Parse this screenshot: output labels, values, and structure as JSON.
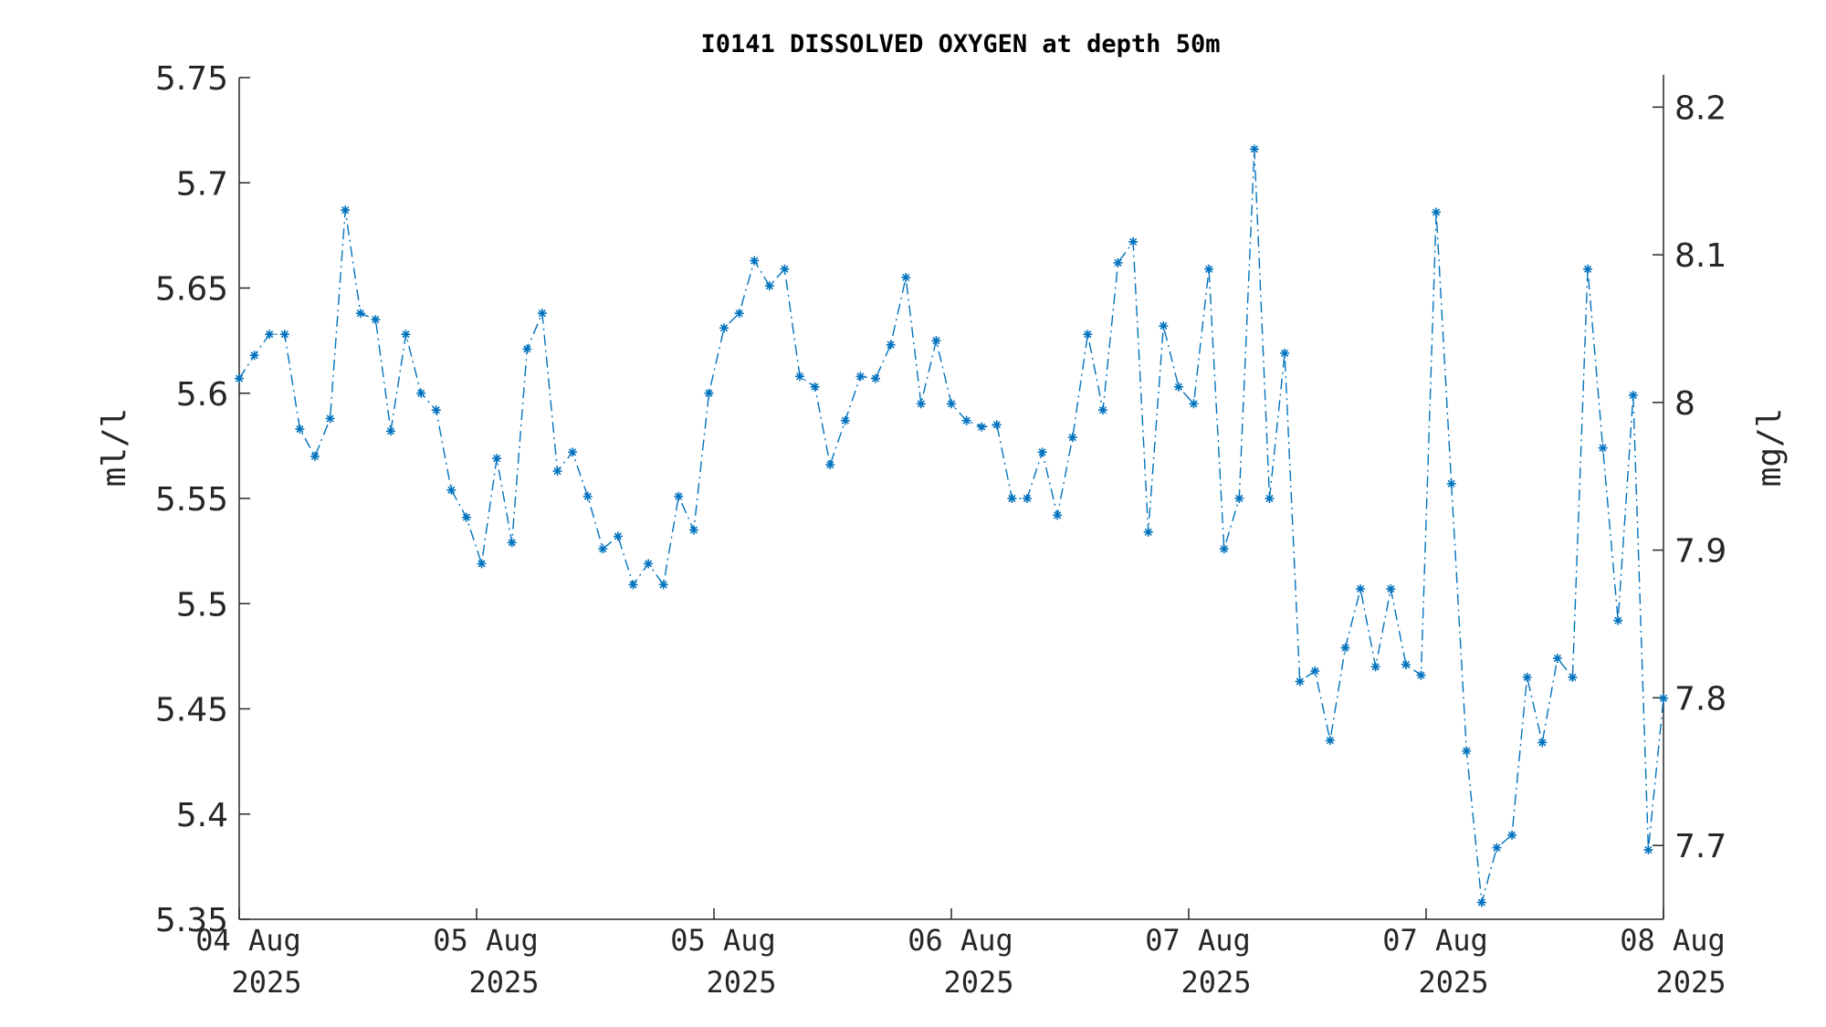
{
  "chart_data": {
    "type": "line",
    "title": "I0141 DISSOLVED OXYGEN at depth 50m",
    "ylabel": "ml/l",
    "ylabel_right": "mg/l",
    "xlabel": "",
    "ylim": [
      5.35,
      5.75
    ],
    "ylim_right": [
      7.65,
      8.22
    ],
    "yticks": [
      "5.35",
      "5.4",
      "5.45",
      "5.5",
      "5.55",
      "5.6",
      "5.65",
      "5.7",
      "5.75"
    ],
    "yticks_right": [
      "7.7",
      "7.8",
      "7.9",
      "8",
      "8.1",
      "8.2"
    ],
    "xticks": [
      {
        "top": "04 Aug",
        "bottom": "2025"
      },
      {
        "top": "05 Aug",
        "bottom": "2025"
      },
      {
        "top": "05 Aug",
        "bottom": "2025"
      },
      {
        "top": "06 Aug",
        "bottom": "2025"
      },
      {
        "top": "07 Aug",
        "bottom": "2025"
      },
      {
        "top": "07 Aug",
        "bottom": "2025"
      },
      {
        "top": "08 Aug",
        "bottom": "2025"
      }
    ],
    "grid": false,
    "legend": "none",
    "series_color": "#0072BD",
    "line_style": "dash-dot",
    "marker": "asterisk",
    "values": [
      5.607,
      5.618,
      5.628,
      5.628,
      5.583,
      5.57,
      5.588,
      5.687,
      5.638,
      5.635,
      5.582,
      5.628,
      5.6,
      5.592,
      5.554,
      5.541,
      5.519,
      5.569,
      5.529,
      5.621,
      5.638,
      5.563,
      5.572,
      5.551,
      5.526,
      5.532,
      5.509,
      5.519,
      5.509,
      5.551,
      5.535,
      5.6,
      5.631,
      5.638,
      5.663,
      5.651,
      5.659,
      5.608,
      5.603,
      5.566,
      5.587,
      5.608,
      5.607,
      5.623,
      5.655,
      5.595,
      5.625,
      5.595,
      5.587,
      5.584,
      5.585,
      5.55,
      5.55,
      5.572,
      5.542,
      5.579,
      5.628,
      5.592,
      5.662,
      5.672,
      5.534,
      5.632,
      5.603,
      5.595,
      5.659,
      5.526,
      5.55,
      5.716,
      5.55,
      5.619,
      5.463,
      5.468,
      5.435,
      5.479,
      5.507,
      5.47,
      5.507,
      5.471,
      5.466,
      5.686,
      5.557,
      5.43,
      5.358,
      5.384,
      5.39,
      5.465,
      5.434,
      5.474,
      5.465,
      5.659,
      5.574,
      5.492,
      5.599,
      5.383,
      5.455
    ]
  }
}
